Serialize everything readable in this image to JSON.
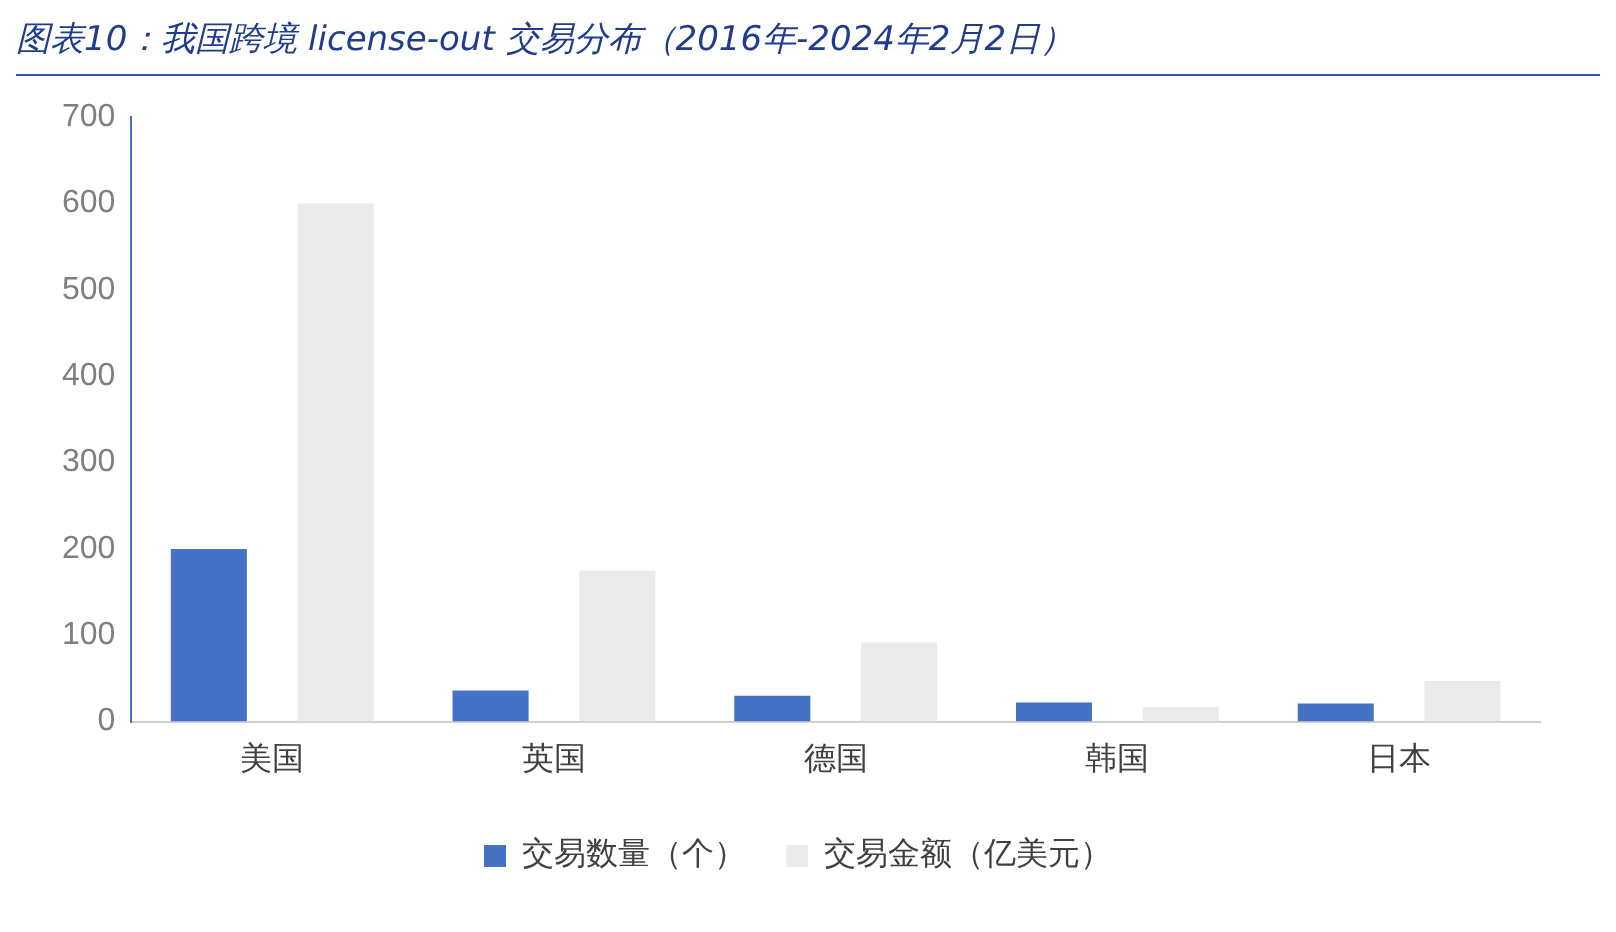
{
  "chart_data": {
    "type": "bar",
    "title": "图表10：我国跨境 license-out 交易分布（2016年-2024年2月2日）",
    "categories": [
      "美国",
      "英国",
      "德国",
      "韩国",
      "日本"
    ],
    "series": [
      {
        "name": "交易数量（个）",
        "color": "#4472c4",
        "values": [
          200,
          36,
          30,
          22,
          21
        ]
      },
      {
        "name": "交易金额（亿美元）",
        "color": "#ebebeb",
        "values": [
          600,
          175,
          92,
          17,
          47
        ]
      }
    ],
    "ylim": [
      0,
      700
    ],
    "yticks": [
      0,
      100,
      200,
      300,
      400,
      500,
      600,
      700
    ],
    "grid": false,
    "legend": "bottom"
  }
}
